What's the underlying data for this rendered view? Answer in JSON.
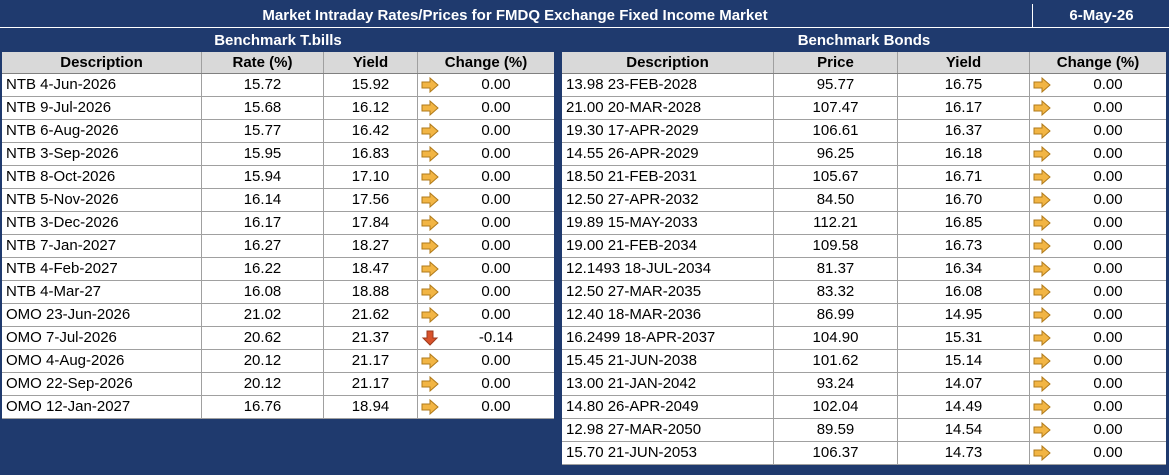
{
  "title": "Market Intraday Rates/Prices for FMDQ Exchange Fixed Income Market",
  "date": "6-May-26",
  "tbills": {
    "heading": "Benchmark T.bills",
    "columns": [
      "Description",
      "Rate (%)",
      "Yield",
      "Change (%)"
    ],
    "rows": [
      {
        "desc": "NTB 4-Jun-2026",
        "rate": "15.72",
        "yield": "15.92",
        "change": "0.00",
        "dir": "flat"
      },
      {
        "desc": "NTB 9-Jul-2026",
        "rate": "15.68",
        "yield": "16.12",
        "change": "0.00",
        "dir": "flat"
      },
      {
        "desc": "NTB 6-Aug-2026",
        "rate": "15.77",
        "yield": "16.42",
        "change": "0.00",
        "dir": "flat"
      },
      {
        "desc": "NTB 3-Sep-2026",
        "rate": "15.95",
        "yield": "16.83",
        "change": "0.00",
        "dir": "flat"
      },
      {
        "desc": "NTB 8-Oct-2026",
        "rate": "15.94",
        "yield": "17.10",
        "change": "0.00",
        "dir": "flat"
      },
      {
        "desc": "NTB 5-Nov-2026",
        "rate": "16.14",
        "yield": "17.56",
        "change": "0.00",
        "dir": "flat"
      },
      {
        "desc": "NTB 3-Dec-2026",
        "rate": "16.17",
        "yield": "17.84",
        "change": "0.00",
        "dir": "flat"
      },
      {
        "desc": "NTB 7-Jan-2027",
        "rate": "16.27",
        "yield": "18.27",
        "change": "0.00",
        "dir": "flat"
      },
      {
        "desc": "NTB 4-Feb-2027",
        "rate": "16.22",
        "yield": "18.47",
        "change": "0.00",
        "dir": "flat"
      },
      {
        "desc": "NTB 4-Mar-27",
        "rate": "16.08",
        "yield": "18.88",
        "change": "0.00",
        "dir": "flat"
      },
      {
        "desc": "OMO 23-Jun-2026",
        "rate": "21.02",
        "yield": "21.62",
        "change": "0.00",
        "dir": "flat"
      },
      {
        "desc": "OMO 7-Jul-2026",
        "rate": "20.62",
        "yield": "21.37",
        "change": "-0.14",
        "dir": "down"
      },
      {
        "desc": "OMO 4-Aug-2026",
        "rate": "20.12",
        "yield": "21.17",
        "change": "0.00",
        "dir": "flat"
      },
      {
        "desc": "OMO 22-Sep-2026",
        "rate": "20.12",
        "yield": "21.17",
        "change": "0.00",
        "dir": "flat"
      },
      {
        "desc": "OMO 12-Jan-2027",
        "rate": "16.76",
        "yield": "18.94",
        "change": "0.00",
        "dir": "flat"
      }
    ]
  },
  "bonds": {
    "heading": "Benchmark Bonds",
    "columns": [
      "Description",
      "Price",
      "Yield",
      "Change (%)"
    ],
    "rows": [
      {
        "desc": "13.98 23-FEB-2028",
        "price": "95.77",
        "yield": "16.75",
        "change": "0.00",
        "dir": "flat"
      },
      {
        "desc": "21.00 20-MAR-2028",
        "price": "107.47",
        "yield": "16.17",
        "change": "0.00",
        "dir": "flat"
      },
      {
        "desc": "19.30 17-APR-2029",
        "price": "106.61",
        "yield": "16.37",
        "change": "0.00",
        "dir": "flat"
      },
      {
        "desc": "14.55 26-APR-2029",
        "price": "96.25",
        "yield": "16.18",
        "change": "0.00",
        "dir": "flat"
      },
      {
        "desc": "18.50 21-FEB-2031",
        "price": "105.67",
        "yield": "16.71",
        "change": "0.00",
        "dir": "flat"
      },
      {
        "desc": "12.50 27-APR-2032",
        "price": "84.50",
        "yield": "16.70",
        "change": "0.00",
        "dir": "flat"
      },
      {
        "desc": "19.89 15-MAY-2033",
        "price": "112.21",
        "yield": "16.85",
        "change": "0.00",
        "dir": "flat"
      },
      {
        "desc": "19.00 21-FEB-2034",
        "price": "109.58",
        "yield": "16.73",
        "change": "0.00",
        "dir": "flat"
      },
      {
        "desc": "12.1493 18-JUL-2034",
        "price": "81.37",
        "yield": "16.34",
        "change": "0.00",
        "dir": "flat"
      },
      {
        "desc": "12.50 27-MAR-2035",
        "price": "83.32",
        "yield": "16.08",
        "change": "0.00",
        "dir": "flat"
      },
      {
        "desc": "12.40 18-MAR-2036",
        "price": "86.99",
        "yield": "14.95",
        "change": "0.00",
        "dir": "flat"
      },
      {
        "desc": "16.2499 18-APR-2037",
        "price": "104.90",
        "yield": "15.31",
        "change": "0.00",
        "dir": "flat"
      },
      {
        "desc": "15.45 21-JUN-2038",
        "price": "101.62",
        "yield": "15.14",
        "change": "0.00",
        "dir": "flat"
      },
      {
        "desc": "13.00 21-JAN-2042",
        "price": "93.24",
        "yield": "14.07",
        "change": "0.00",
        "dir": "flat"
      },
      {
        "desc": "14.80 26-APR-2049",
        "price": "102.04",
        "yield": "14.49",
        "change": "0.00",
        "dir": "flat"
      },
      {
        "desc": "12.98 27-MAR-2050",
        "price": "89.59",
        "yield": "14.54",
        "change": "0.00",
        "dir": "flat"
      },
      {
        "desc": "15.70 21-JUN-2053",
        "price": "106.37",
        "yield": "14.73",
        "change": "0.00",
        "dir": "flat"
      }
    ]
  },
  "colors": {
    "header_bg": "#1f3a6e",
    "column_header_bg": "#d9d9d9",
    "flat_arrow": "#f2b544",
    "down_arrow": "#d9532b"
  },
  "icons": {
    "flat": "right-arrow-icon",
    "down": "down-arrow-icon"
  }
}
